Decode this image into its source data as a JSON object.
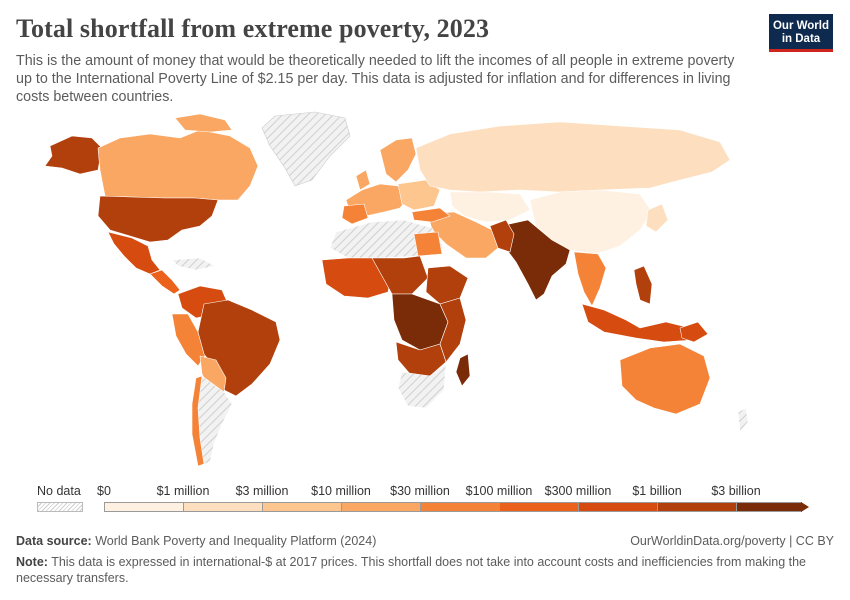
{
  "header": {
    "title": "Total shortfall from extreme poverty, 2023",
    "subtitle": "This is the amount of money that would be theoretically needed to lift the incomes of all people in extreme poverty up to the International Poverty Line of $2.15 per day. This data is adjusted for inflation and for differences in living costs between countries."
  },
  "logo": {
    "line1": "Our World",
    "line2": "in Data"
  },
  "legend": {
    "no_data_label": "No data",
    "labels": [
      "$0",
      "$1 million",
      "$3 million",
      "$10 million",
      "$30 million",
      "$100 million",
      "$300 million",
      "$1 billion",
      "$3 billion"
    ],
    "colors": [
      "#fef1e2",
      "#fddebf",
      "#fcc68e",
      "#f9a762",
      "#f48338",
      "#ea621b",
      "#d64c10",
      "#b2400c",
      "#7a2b07"
    ],
    "no_data_color": "#e7e7e7"
  },
  "footer": {
    "source_label": "Data source:",
    "source_text": "World Bank Poverty and Inequality Platform (2024)",
    "link_text": "OurWorldinData.org/poverty",
    "license_text": "| CC BY",
    "note_label": "Note:",
    "note_text": "This data is expressed in international-$ at 2017 prices. This shortfall does not take into account costs and inefficiencies from making the necessary transfers."
  }
}
